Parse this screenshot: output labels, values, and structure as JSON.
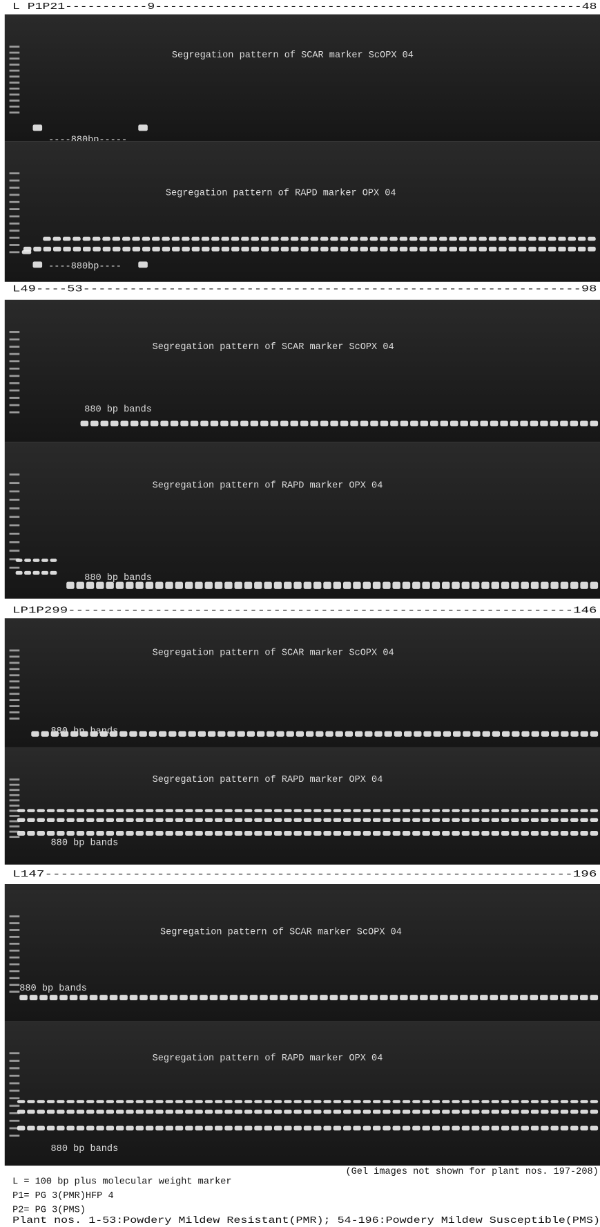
{
  "panels": [
    {
      "header": "L P1P21-----------9---------------------------------------------------------48",
      "gels": [
        {
          "caption": "Segregation pattern of SCAR marker ScOPX 04",
          "band_label": "----880bp-----"
        },
        {
          "caption": "Segregation pattern of RAPD marker OPX 04",
          "band_label": "----880bp----"
        }
      ]
    },
    {
      "header": "L49----53----------------------------------------------------------------98",
      "gels": [
        {
          "caption": "Segregation pattern of SCAR marker ScOPX 04",
          "band_label": "880 bp bands"
        },
        {
          "caption": "Segregation pattern of RAPD marker OPX 04",
          "band_label": "880 bp bands"
        }
      ]
    },
    {
      "header": "LP1P299----------------------------------------------------------------146",
      "gels": [
        {
          "caption": "Segregation pattern of SCAR marker ScOPX 04",
          "band_label": "880 bp bands"
        },
        {
          "caption": "Segregation pattern of RAPD marker OPX 04",
          "band_label": "880 bp bands"
        }
      ]
    },
    {
      "header": "L147------------------------------------------------------------------196",
      "gels": [
        {
          "caption": "Segregation pattern of SCAR marker ScOPX 04",
          "band_label": "880 bp bands"
        },
        {
          "caption": "Segregation pattern of RAPD marker OPX 04",
          "band_label": "880 bp bands"
        }
      ]
    }
  ],
  "notes": {
    "gel_note": "(Gel images not shown for plant nos. 197-208)",
    "lines": [
      "L  = 100 bp plus molecular weight marker",
      "P1= PG 3(PMR)HFP 4",
      "P2= PG 3(PMS)",
      "Plant nos. 1-53:Powdery Mildew Resistant(PMR); 54-196:Powdery Mildew Susceptible(PMS)"
    ]
  }
}
